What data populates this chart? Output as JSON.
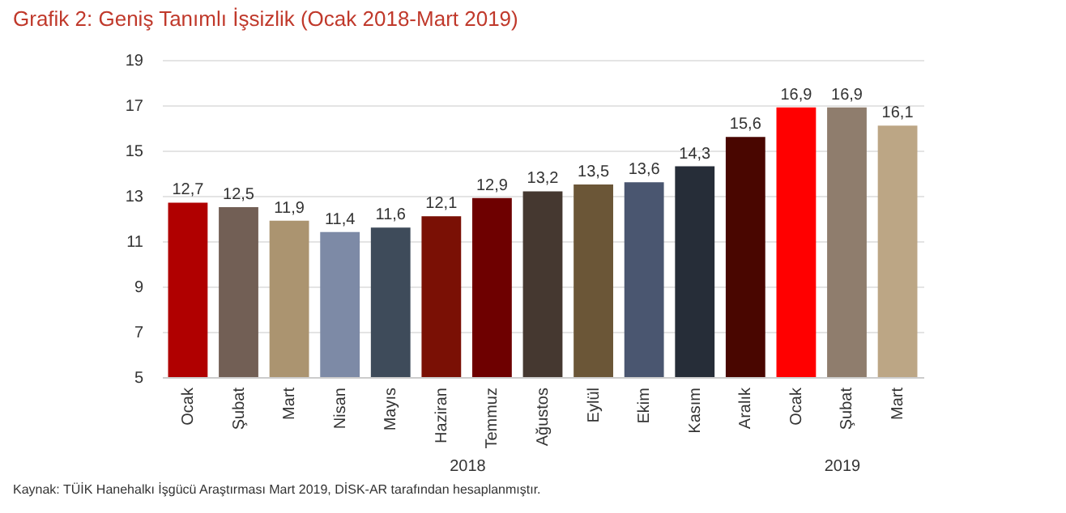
{
  "chart_data": {
    "type": "bar",
    "title": "Grafik 2: Geniş Tanımlı İşsizlik (Ocak 2018-Mart 2019)",
    "categories": [
      "Ocak",
      "Şubat",
      "Mart",
      "Nisan",
      "Mayıs",
      "Haziran",
      "Temmuz",
      "Ağustos",
      "Eylül",
      "Ekim",
      "Kasım",
      "Aralık",
      "Ocak",
      "Şubat",
      "Mart"
    ],
    "values": [
      12.7,
      12.5,
      11.9,
      11.4,
      11.6,
      12.1,
      12.9,
      13.2,
      13.5,
      13.6,
      14.3,
      15.6,
      16.9,
      16.9,
      16.1
    ],
    "value_labels": [
      "12,7",
      "12,5",
      "11,9",
      "11,4",
      "11,6",
      "12,1",
      "12,9",
      "13,2",
      "13,5",
      "13,6",
      "14,3",
      "15,6",
      "16,9",
      "16,9",
      "16,1"
    ],
    "colors": [
      "#b00000",
      "#725f55",
      "#ab9470",
      "#7d8aa6",
      "#3e4b5a",
      "#7a1005",
      "#6e0000",
      "#453830",
      "#6b5637",
      "#4a5670",
      "#262d38",
      "#490600",
      "#ff0000",
      "#8f7d6d",
      "#bca685"
    ],
    "ylim": [
      5,
      19
    ],
    "yticks": [
      5,
      7,
      9,
      11,
      13,
      15,
      17,
      19
    ],
    "grid": "y",
    "annotations": [
      "2018",
      "2019",
      "Kaynak: TÜİK Hanehalkı İşgücü Araştırması Mart 2019, DİSK-AR tarafından hesaplanmıştır."
    ]
  }
}
